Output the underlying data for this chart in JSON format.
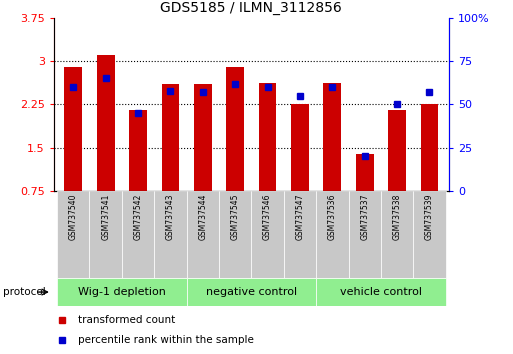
{
  "title": "GDS5185 / ILMN_3112856",
  "samples": [
    "GSM737540",
    "GSM737541",
    "GSM737542",
    "GSM737543",
    "GSM737544",
    "GSM737545",
    "GSM737546",
    "GSM737547",
    "GSM737536",
    "GSM737537",
    "GSM737538",
    "GSM737539"
  ],
  "transformed_count": [
    2.9,
    3.1,
    2.15,
    2.6,
    2.6,
    2.9,
    2.62,
    2.25,
    2.62,
    1.4,
    2.15,
    2.25
  ],
  "percentile_rank": [
    60,
    65,
    45,
    58,
    57,
    62,
    60,
    55,
    60,
    20,
    50,
    57
  ],
  "groups": [
    {
      "label": "Wig-1 depletion",
      "start": 0,
      "end": 4
    },
    {
      "label": "negative control",
      "start": 4,
      "end": 8
    },
    {
      "label": "vehicle control",
      "start": 8,
      "end": 12
    }
  ],
  "bar_color": "#cc0000",
  "dot_color": "#0000cc",
  "ylim_left": [
    0.75,
    3.75
  ],
  "ylim_right": [
    0,
    100
  ],
  "yticks_left": [
    0.75,
    1.5,
    2.25,
    3.0,
    3.75
  ],
  "yticks_right": [
    0,
    25,
    50,
    75,
    100
  ],
  "ytick_labels_left": [
    "0.75",
    "1.5",
    "2.25",
    "3",
    "3.75"
  ],
  "ytick_labels_right": [
    "0",
    "25",
    "50",
    "75",
    "100%"
  ],
  "bar_width": 0.55,
  "group_bg_color": "#90ee90",
  "sample_bg_color": "#c8c8c8",
  "protocol_label": "protocol",
  "legend_items": [
    "transformed count",
    "percentile rank within the sample"
  ],
  "legend_colors": [
    "#cc0000",
    "#0000cc"
  ],
  "gridline_vals": [
    1.5,
    2.25,
    3.0
  ],
  "chart_bg": "#ffffff"
}
